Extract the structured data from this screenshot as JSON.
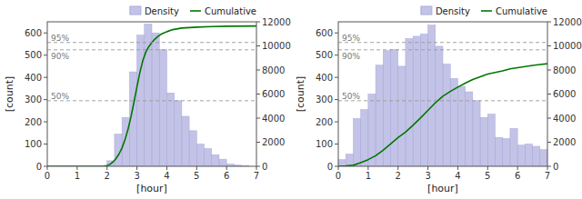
{
  "chart_data": [
    {
      "type": "histogram",
      "xlabel": "[hour]",
      "ylabel": "[count]",
      "bins": [
        0,
        0.25,
        0.5,
        0.75,
        1.0,
        1.25,
        1.5,
        1.75,
        2.0,
        2.25,
        2.5,
        2.75,
        3.0,
        3.25,
        3.5,
        3.75,
        4.0,
        4.25,
        4.5,
        4.75,
        5.0,
        5.25,
        5.5,
        5.75,
        6.0,
        6.25,
        6.5,
        6.75,
        7.0
      ],
      "series": [
        {
          "name": "Density",
          "type": "histogram",
          "color": "#aaaadd",
          "values": [
            0,
            0,
            0,
            0,
            0,
            0,
            0,
            0,
            25,
            145,
            220,
            425,
            590,
            640,
            600,
            525,
            330,
            295,
            225,
            160,
            100,
            80,
            52,
            32,
            10,
            5,
            2,
            0
          ]
        },
        {
          "name": "Cumulative",
          "type": "line",
          "color": "#007700",
          "axis": "y2",
          "x": [
            0.0,
            1.8,
            1.9,
            2.0,
            2.1,
            2.2,
            2.3,
            2.4,
            2.5,
            2.6,
            2.7,
            2.8,
            2.9,
            3.0,
            3.1,
            3.2,
            3.3,
            3.4,
            3.5,
            3.6,
            3.7,
            3.8,
            3.9,
            4.0,
            4.2,
            4.5,
            5.0,
            5.5,
            6.0,
            7.0
          ],
          "values": [
            0,
            0,
            10,
            60,
            160,
            360,
            640,
            1020,
            1520,
            2200,
            3050,
            4100,
            5300,
            6600,
            7800,
            8800,
            9500,
            9950,
            10280,
            10560,
            10780,
            10960,
            11080,
            11180,
            11350,
            11480,
            11560,
            11600,
            11630,
            11650
          ]
        }
      ],
      "annotations": [
        {
          "y": 557,
          "text": "95%"
        },
        {
          "y": 524,
          "text": "90%"
        },
        {
          "y": 295,
          "text": "50%"
        }
      ],
      "xlim": [
        0,
        7
      ],
      "xticks": [
        0,
        1,
        2,
        3,
        4,
        5,
        6,
        7
      ],
      "ylim": [
        0,
        650
      ],
      "yticks": [
        0,
        100,
        200,
        300,
        400,
        500,
        600
      ],
      "y2lim": [
        0,
        12000
      ],
      "y2ticks": [
        0,
        2000,
        4000,
        6000,
        8000,
        10000,
        12000
      ],
      "legend": "top",
      "grid": false
    },
    {
      "type": "histogram",
      "xlabel": "[hour]",
      "ylabel": "[count]",
      "bins": [
        0,
        0.25,
        0.5,
        0.75,
        1.0,
        1.25,
        1.5,
        1.75,
        2.0,
        2.25,
        2.5,
        2.75,
        3.0,
        3.25,
        3.5,
        3.75,
        4.0,
        4.25,
        4.5,
        4.75,
        5.0,
        5.25,
        5.5,
        5.75,
        6.0,
        6.25,
        6.5,
        6.75,
        7.0
      ],
      "series": [
        {
          "name": "Density",
          "type": "histogram",
          "color": "#aaaadd",
          "values": [
            30,
            55,
            215,
            255,
            325,
            455,
            520,
            525,
            450,
            575,
            585,
            595,
            635,
            540,
            460,
            395,
            360,
            335,
            295,
            220,
            235,
            130,
            125,
            170,
            95,
            100,
            90,
            75
          ]
        },
        {
          "name": "Cumulative",
          "type": "line",
          "color": "#007700",
          "axis": "y2",
          "x": [
            0,
            0.25,
            0.5,
            0.75,
            1.0,
            1.25,
            1.5,
            1.75,
            2.0,
            2.25,
            2.5,
            2.75,
            3.0,
            3.25,
            3.5,
            3.75,
            4.0,
            4.25,
            4.5,
            4.75,
            5.0,
            5.25,
            5.5,
            5.75,
            6.0,
            6.25,
            6.5,
            6.75,
            7.0
          ],
          "values": [
            0,
            30,
            85,
            300,
            555,
            880,
            1335,
            1860,
            2385,
            2835,
            3410,
            4005,
            4640,
            5280,
            5820,
            6215,
            6575,
            6910,
            7205,
            7425,
            7660,
            7790,
            7920,
            8090,
            8185,
            8285,
            8375,
            8450,
            8520
          ]
        }
      ],
      "annotations": [
        {
          "y": 557,
          "text": "95%"
        },
        {
          "y": 524,
          "text": "90%"
        },
        {
          "y": 295,
          "text": "50%"
        }
      ],
      "xlim": [
        0,
        7
      ],
      "xticks": [
        0,
        1,
        2,
        3,
        4,
        5,
        6,
        7
      ],
      "ylim": [
        0,
        650
      ],
      "yticks": [
        0,
        100,
        200,
        300,
        400,
        500,
        600
      ],
      "y2lim": [
        0,
        12000
      ],
      "y2ticks": [
        0,
        2000,
        4000,
        6000,
        8000,
        10000,
        12000
      ],
      "legend": "top",
      "grid": false
    }
  ]
}
